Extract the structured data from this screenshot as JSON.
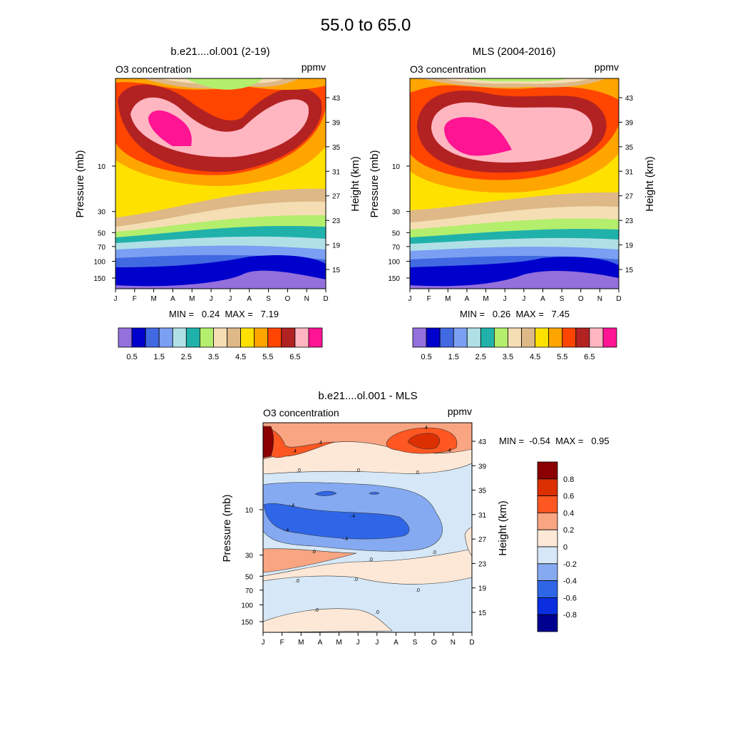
{
  "page": {
    "title": "55.0 to  65.0"
  },
  "chart_data": [
    {
      "type": "heatmap",
      "title": "b.e21....ol.001 (2-19)",
      "left_string": "O3 concentration",
      "right_string": "ppmv",
      "ylabel_left": "Pressure (mb)",
      "ylabel_right": "Height (km)",
      "x_months": [
        "J",
        "F",
        "M",
        "A",
        "M",
        "J",
        "J",
        "A",
        "S",
        "O",
        "N",
        "D"
      ],
      "pressure_ticks": [
        10,
        30,
        50,
        70,
        100,
        150
      ],
      "height_ticks": [
        43,
        39,
        35,
        31,
        27,
        23,
        19,
        15
      ],
      "stats": "MIN =   0.24  MAX =   7.19",
      "colorbar_labels": [
        "0.5",
        "1.5",
        "2.5",
        "3.5",
        "4.5",
        "5.5",
        "6.5"
      ],
      "colorbar_colors": [
        "#9370db",
        "#0000cd",
        "#4169e1",
        "#7b9ff2",
        "#b0e0e6",
        "#20b2aa",
        "#b3ee6d",
        "#f5deb3",
        "#deb887",
        "#ffe100",
        "#ffa500",
        "#ff4500",
        "#b22222",
        "#ffb6c1",
        "#ff1493"
      ]
    },
    {
      "type": "heatmap",
      "title": "MLS (2004-2016)",
      "left_string": "O3 concentration",
      "right_string": "ppmv",
      "ylabel_left": "Pressure (mb)",
      "ylabel_right": "Height (km)",
      "x_months": [
        "J",
        "F",
        "M",
        "A",
        "M",
        "J",
        "J",
        "A",
        "S",
        "O",
        "N",
        "D"
      ],
      "pressure_ticks": [
        10,
        30,
        50,
        70,
        100,
        150
      ],
      "height_ticks": [
        43,
        39,
        35,
        31,
        27,
        23,
        19,
        15
      ],
      "stats": "MIN =   0.26  MAX =   7.45",
      "colorbar_labels": [
        "0.5",
        "1.5",
        "2.5",
        "3.5",
        "4.5",
        "5.5",
        "6.5"
      ],
      "colorbar_colors": [
        "#9370db",
        "#0000cd",
        "#4169e1",
        "#7b9ff2",
        "#b0e0e6",
        "#20b2aa",
        "#b3ee6d",
        "#f5deb3",
        "#deb887",
        "#ffe100",
        "#ffa500",
        "#ff4500",
        "#b22222",
        "#ffb6c1",
        "#ff1493"
      ]
    },
    {
      "type": "heatmap",
      "title": "b.e21....ol.001 - MLS",
      "left_string": "O3 concentration",
      "right_string": "ppmv",
      "ylabel_left": "Pressure (mb)",
      "ylabel_right": "Height (km)",
      "x_months": [
        "J",
        "F",
        "M",
        "A",
        "M",
        "J",
        "J",
        "A",
        "S",
        "O",
        "N",
        "D"
      ],
      "pressure_ticks": [
        10,
        30,
        50,
        70,
        100,
        150
      ],
      "height_ticks": [
        43,
        39,
        35,
        31,
        27,
        23,
        19,
        15
      ],
      "stats": "MIN =  -0.54  MAX =   0.95",
      "colorbar_labels": [
        "0.8",
        "0.6",
        "0.4",
        "0.2",
        "0",
        "-0.2",
        "-0.4",
        "-0.6",
        "-0.8"
      ],
      "colorbar_colors": [
        "#8b0000",
        "#dc2f02",
        "#ff5722",
        "#f9a582",
        "#fde8d7",
        "#d6e8f7",
        "#85aaf2",
        "#2f66e8",
        "#0a2ee0",
        "#000090"
      ],
      "contour_labels": [
        ".4",
        ".4",
        ".4",
        ".4",
        ".0",
        ".0",
        ".0",
        "-.4",
        "-.4",
        "-.4",
        "-.4",
        ".0",
        ".0",
        ".0",
        ".0",
        ".0",
        ".0",
        ".0",
        ".0"
      ]
    }
  ]
}
